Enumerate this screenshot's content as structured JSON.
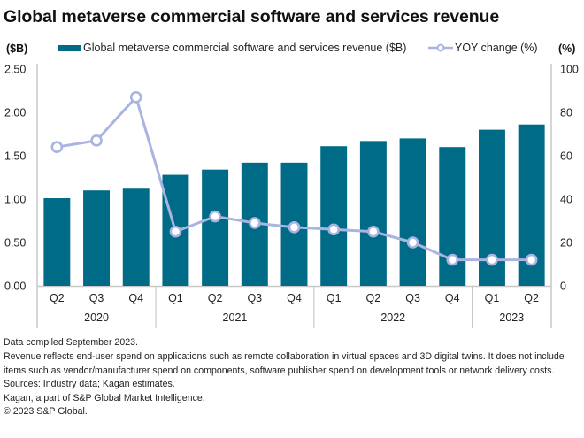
{
  "header": {
    "title": "Global metaverse commercial software and services revenue"
  },
  "chart_data": {
    "type": "bar",
    "title": "Global metaverse commercial software and services revenue",
    "categories": [
      "Q2",
      "Q3",
      "Q4",
      "Q1",
      "Q2",
      "Q3",
      "Q4",
      "Q1",
      "Q2",
      "Q3",
      "Q4",
      "Q1",
      "Q2"
    ],
    "category_groups": [
      {
        "label": "2020",
        "count": 3
      },
      {
        "label": "2021",
        "count": 4
      },
      {
        "label": "2022",
        "count": 4
      },
      {
        "label": "2023",
        "count": 2
      }
    ],
    "series": [
      {
        "name": "Global metaverse commercial software and services revenue ($B)",
        "type": "bar",
        "axis": "left",
        "color": "#006b87",
        "values": [
          1.01,
          1.1,
          1.12,
          1.28,
          1.34,
          1.42,
          1.42,
          1.61,
          1.67,
          1.7,
          1.6,
          1.8,
          1.86
        ]
      },
      {
        "name": "YOY change (%)",
        "type": "line",
        "axis": "right",
        "color": "#a9b4e0",
        "values": [
          64,
          67,
          87,
          25,
          32,
          29,
          27,
          26,
          25,
          20,
          12,
          12,
          12
        ]
      }
    ],
    "ylabel_left": "($B)",
    "ylabel_right": "(%)",
    "ylim_left": [
      0,
      2.5
    ],
    "ylim_right": [
      0,
      100
    ],
    "yticks_left": [
      "0.00",
      "0.50",
      "1.00",
      "1.50",
      "2.00",
      "2.50"
    ],
    "yticks_right": [
      "0",
      "20",
      "40",
      "60",
      "80",
      "100"
    ],
    "grid": false,
    "legend_position": "top"
  },
  "footer": {
    "lines": [
      "Data compiled September 2023.",
      "Revenue reflects end-user spend on applications such as remote collaboration in virtual spaces and 3D digital twins. It does not include items such as vendor/manufacturer spend on components, software publisher spend on development tools or network delivery costs.",
      "Sources: Industry data; Kagan estimates.",
      "Kagan, a part of S&P Global Market Intelligence.",
      "© 2023 S&P Global."
    ]
  }
}
